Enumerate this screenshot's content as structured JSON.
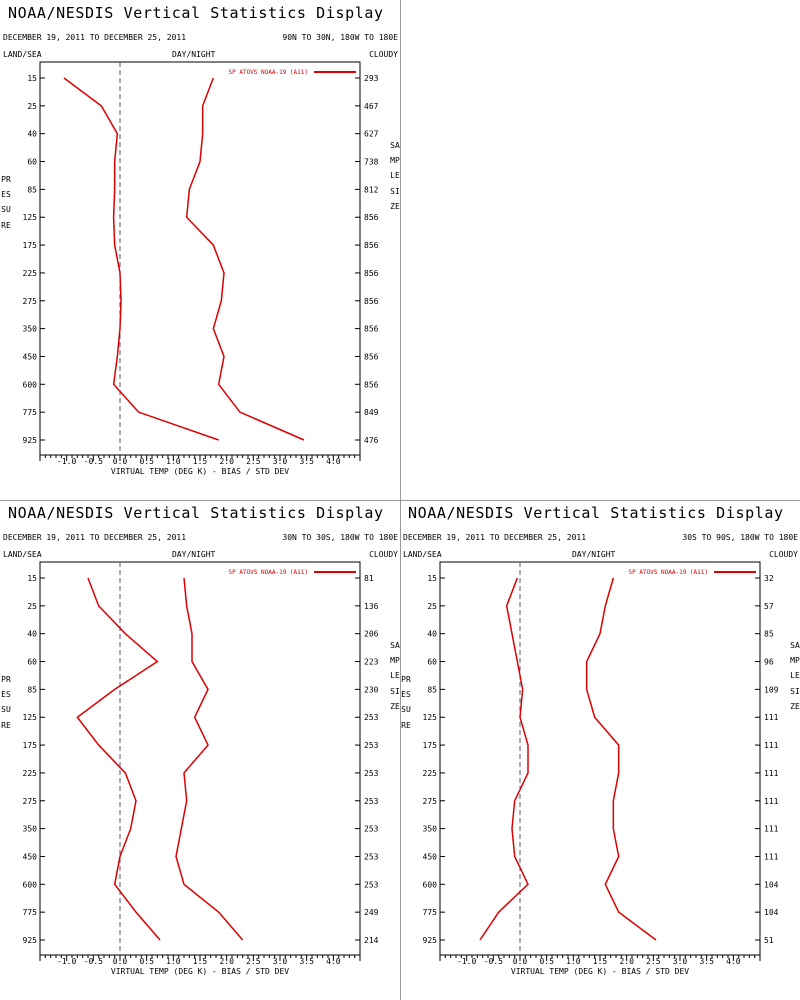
{
  "colors": {
    "series": "#dd0000",
    "axis": "#000000",
    "zero": "#555577",
    "divider": "#999999"
  },
  "common": {
    "title": "NOAA/NESDIS Vertical Statistics Display",
    "date_range": "DECEMBER 19, 2011 TO DECEMBER 25, 2011",
    "land_sea": "LAND/SEA",
    "day_night": "DAY/NIGHT",
    "cloudy": "CLOUDY",
    "xlabel": "VIRTUAL TEMP (DEG K) - BIAS / STD DEV",
    "ylabel": "PRESSURE",
    "sample_label": "SAMPLE SIZE",
    "legend": "SP ATOVS NOAA-19 (A11)"
  },
  "chart_data": [
    {
      "type": "line",
      "region": "90N TO 30N, 180W TO 180E",
      "pressure_levels": [
        15,
        25,
        40,
        60,
        85,
        125,
        175,
        225,
        275,
        350,
        450,
        600,
        775,
        925
      ],
      "xlim": [
        -1.5,
        4.5
      ],
      "xticks": [
        "-1.0",
        "-0.5",
        "0.0",
        "0.5",
        "1.0",
        "1.5",
        "2.0",
        "2.5",
        "3.0",
        "3.5",
        "4.0"
      ],
      "series": [
        {
          "name": "SP ATOVS NOAA-19 (A11)",
          "bias": [
            -1.05,
            -0.35,
            -0.05,
            -0.1,
            -0.1,
            -0.12,
            -0.1,
            0.0,
            0.02,
            0.0,
            -0.05,
            -0.12,
            0.35,
            1.85
          ],
          "std_dev": [
            1.75,
            1.55,
            1.55,
            1.5,
            1.3,
            1.25,
            1.75,
            1.95,
            1.9,
            1.75,
            1.95,
            1.85,
            2.25,
            3.45
          ]
        }
      ],
      "sample_size": [
        "293",
        "467",
        "627",
        "738",
        "812",
        "856",
        "856",
        "856",
        "856",
        "856",
        "856",
        "856",
        "849",
        "476"
      ]
    },
    {
      "type": "line",
      "region": "30N TO 30S, 180W TO 180E",
      "pressure_levels": [
        15,
        25,
        40,
        60,
        85,
        125,
        175,
        225,
        275,
        350,
        450,
        600,
        775,
        925
      ],
      "xlim": [
        -1.5,
        4.5
      ],
      "xticks": [
        "-1.0",
        "-0.5",
        "0.0",
        "0.5",
        "1.0",
        "1.5",
        "2.0",
        "2.5",
        "3.0",
        "3.5",
        "4.0"
      ],
      "series": [
        {
          "name": "SP ATOVS NOAA-19 (A11)",
          "bias": [
            -0.6,
            -0.4,
            0.1,
            0.7,
            -0.1,
            -0.8,
            -0.4,
            0.1,
            0.3,
            0.2,
            0.0,
            -0.1,
            0.3,
            0.75
          ],
          "std_dev": [
            1.2,
            1.25,
            1.35,
            1.35,
            1.65,
            1.4,
            1.65,
            1.2,
            1.25,
            1.15,
            1.05,
            1.2,
            1.85,
            2.3
          ]
        }
      ],
      "sample_size": [
        "81",
        "136",
        "206",
        "223",
        "230",
        "253",
        "253",
        "253",
        "253",
        "253",
        "253",
        "253",
        "249",
        "214"
      ]
    },
    {
      "type": "line",
      "region": "30S TO 90S, 180W TO 180E",
      "pressure_levels": [
        15,
        25,
        40,
        60,
        85,
        125,
        175,
        225,
        275,
        350,
        450,
        600,
        775,
        925
      ],
      "xlim": [
        -1.5,
        4.5
      ],
      "xticks": [
        "-1.0",
        "-0.5",
        "0.0",
        "0.5",
        "1.0",
        "1.5",
        "2.0",
        "2.5",
        "3.0",
        "3.5",
        "4.0"
      ],
      "series": [
        {
          "name": "SP ATOVS NOAA-19 (A11)",
          "bias": [
            -0.05,
            -0.25,
            -0.15,
            -0.05,
            0.05,
            0.0,
            0.15,
            0.15,
            -0.1,
            -0.15,
            -0.1,
            0.15,
            -0.4,
            -0.75
          ],
          "std_dev": [
            1.75,
            1.6,
            1.5,
            1.25,
            1.25,
            1.4,
            1.85,
            1.85,
            1.75,
            1.75,
            1.85,
            1.6,
            1.85,
            2.55
          ]
        }
      ],
      "sample_size": [
        "32",
        "57",
        "85",
        "96",
        "109",
        "111",
        "111",
        "111",
        "111",
        "111",
        "111",
        "104",
        "104",
        "51"
      ]
    }
  ]
}
